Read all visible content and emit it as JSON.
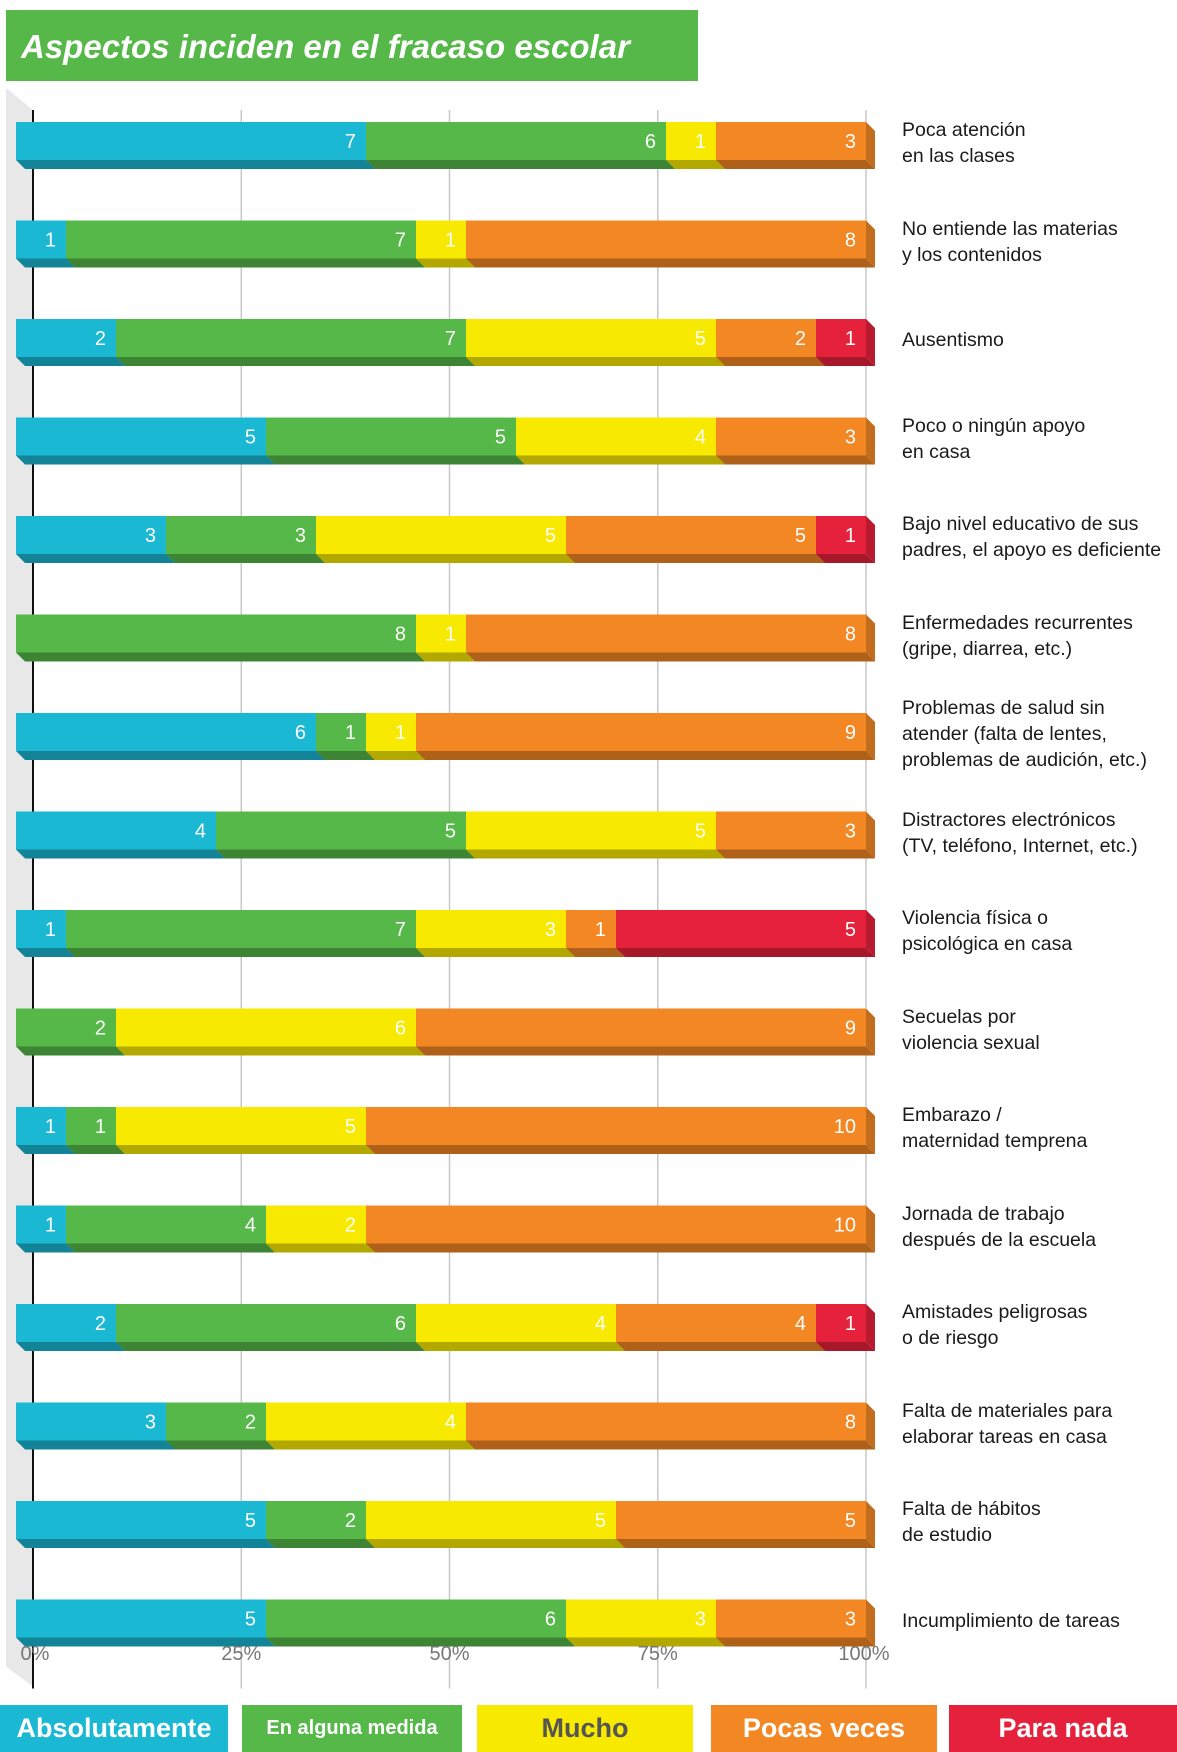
{
  "title": "Aspectos inciden en el fracaso escolar",
  "colors": {
    "absolutamente": "#1ab8d3",
    "en_alguna_medida": "#55b848",
    "mucho": "#f7ea00",
    "pocas_veces": "#f38724",
    "para_nada": "#e6213b"
  },
  "chart_data": {
    "type": "bar",
    "orientation": "horizontal",
    "stacked": "100%",
    "title": "Aspectos inciden en el fracaso escolar",
    "xlim": [
      0,
      100
    ],
    "x_ticks": [
      "0%",
      "25%",
      "50%",
      "75%",
      "100%"
    ],
    "grid": true,
    "legend_position": "bottom",
    "categories": [
      "Poca atención\nen las clases",
      "No entiende las materias\ny los contenidos",
      "Ausentismo",
      "Poco o ningún apoyo\nen casa",
      "Bajo nivel educativo de sus\npadres, el apoyo es deficiente",
      "Enfermedades recurrentes\n(gripe, diarrea, etc.)",
      "Problemas de salud sin\natender (falta de lentes,\nproblemas de audición, etc.)",
      "Distractores electrónicos\n(TV, teléfono, Internet, etc.)",
      "Violencia física o\npsicológica en casa",
      "Secuelas por\nviolencia sexual",
      "Embarazo /\nmaternidad temprena",
      "Jornada de trabajo\ndespués de la escuela",
      "Amistades peligrosas\no de riesgo",
      "Falta de materiales para\nelaborar tareas en casa",
      "Falta de hábitos\nde estudio",
      "Incumplimiento de tareas"
    ],
    "series": [
      {
        "name": "Absolutamente",
        "values": [
          7,
          1,
          2,
          5,
          3,
          0,
          6,
          4,
          1,
          0,
          1,
          1,
          2,
          3,
          5,
          5
        ]
      },
      {
        "name": "En alguna medida",
        "values": [
          6,
          7,
          7,
          5,
          3,
          8,
          1,
          5,
          7,
          2,
          1,
          4,
          6,
          2,
          2,
          6
        ]
      },
      {
        "name": "Mucho",
        "values": [
          1,
          1,
          5,
          4,
          5,
          1,
          1,
          5,
          3,
          6,
          5,
          2,
          4,
          4,
          5,
          3
        ]
      },
      {
        "name": "Pocas veces",
        "values": [
          3,
          8,
          2,
          3,
          5,
          8,
          9,
          3,
          1,
          9,
          10,
          10,
          4,
          8,
          5,
          3
        ]
      },
      {
        "name": "Para nada",
        "values": [
          0,
          0,
          1,
          0,
          1,
          0,
          0,
          0,
          5,
          0,
          0,
          0,
          1,
          0,
          0,
          0
        ]
      }
    ]
  }
}
